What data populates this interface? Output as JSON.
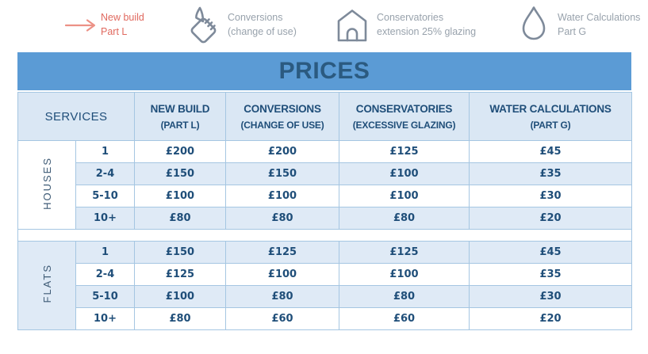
{
  "legend": {
    "items": [
      {
        "icon": "arrow-right-icon",
        "line1": "New build",
        "line2": "Part L"
      },
      {
        "icon": "paint-bucket-icon",
        "line1": "Conversions",
        "line2": "(change of use)"
      },
      {
        "icon": "house-icon",
        "line1": "Conservatories",
        "line2": "extension 25% glazing"
      },
      {
        "icon": "water-drop-icon",
        "line1": "Water Calculations",
        "line2": "Part G"
      }
    ]
  },
  "title": "PRICES",
  "table": {
    "services_header": "SERVICES",
    "columns": [
      {
        "line1": "NEW BUILD",
        "line2": "(PART L)"
      },
      {
        "line1": "CONVERSIONS",
        "line2": "(CHANGE OF USE)"
      },
      {
        "line1": "CONSERVATORIES",
        "line2": "(EXCESSIVE GLAZING)"
      },
      {
        "line1": "WATER CALCULATIONS",
        "line2": "(PART G)"
      }
    ],
    "groups": [
      {
        "label": "HOUSES",
        "rows": [
          {
            "qty": "1",
            "prices": [
              "£200",
              "£200",
              "£125",
              "£45"
            ]
          },
          {
            "qty": "2-4",
            "prices": [
              "£150",
              "£150",
              "£100",
              "£35"
            ]
          },
          {
            "qty": "5-10",
            "prices": [
              "£100",
              "£100",
              "£100",
              "£30"
            ]
          },
          {
            "qty": "10+",
            "prices": [
              "£80",
              "£80",
              "£80",
              "£20"
            ]
          }
        ]
      },
      {
        "label": "FLATS",
        "rows": [
          {
            "qty": "1",
            "prices": [
              "£150",
              "£125",
              "£125",
              "£45"
            ]
          },
          {
            "qty": "2-4",
            "prices": [
              "£125",
              "£100",
              "£100",
              "£35"
            ]
          },
          {
            "qty": "5-10",
            "prices": [
              "£100",
              "£80",
              "£80",
              "£30"
            ]
          },
          {
            "qty": "10+",
            "prices": [
              "£80",
              "£60",
              "£60",
              "£20"
            ]
          }
        ]
      }
    ]
  },
  "colors": {
    "accent_red": "#e0695f",
    "arrow_red": "#ec9186",
    "legend_gray": "#98a2ac",
    "icon_slate": "#7e8a9a",
    "banner_blue": "#5b9bd5",
    "banner_text": "#2b5a80",
    "header_bg": "#dae7f4",
    "row_shaded": "#dfeaf6",
    "text_navy": "#1f4e79",
    "border_blue": "#a5c6e2"
  },
  "chart_data": {
    "type": "table",
    "title": "PRICES",
    "currency": "GBP",
    "column_headers": [
      "SERVICES",
      "NEW BUILD (PART L)",
      "CONVERSIONS (CHANGE OF USE)",
      "CONSERVATORIES (EXCESSIVE GLAZING)",
      "WATER CALCULATIONS (PART G)"
    ],
    "row_groups": [
      {
        "group": "HOUSES",
        "rows": [
          [
            "1",
            200,
            200,
            125,
            45
          ],
          [
            "2-4",
            150,
            150,
            100,
            35
          ],
          [
            "5-10",
            100,
            100,
            100,
            30
          ],
          [
            "10+",
            80,
            80,
            80,
            20
          ]
        ]
      },
      {
        "group": "FLATS",
        "rows": [
          [
            "1",
            150,
            125,
            125,
            45
          ],
          [
            "2-4",
            125,
            100,
            100,
            35
          ],
          [
            "5-10",
            100,
            80,
            80,
            30
          ],
          [
            "10+",
            80,
            60,
            60,
            20
          ]
        ]
      }
    ]
  }
}
